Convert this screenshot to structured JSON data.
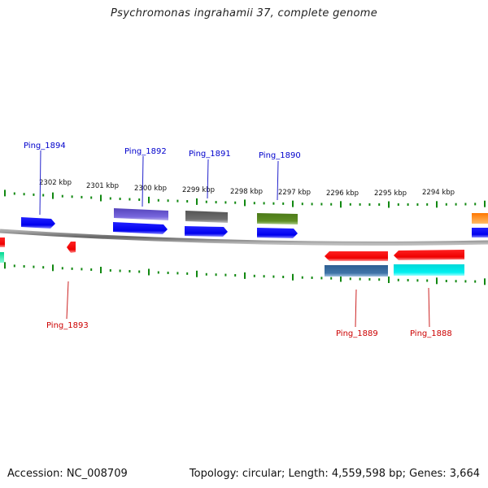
{
  "title": "Psychromonas ingrahamii 37, complete genome",
  "footer": {
    "accession": "Accession: NC_008709",
    "summary": "Topology: circular; Length: 4,559,598 bp; Genes: 3,664"
  },
  "scale_labels": [
    "2302 kbp",
    "2301 kbp",
    "2300 kbp",
    "2299 kbp",
    "2298 kbp",
    "2297 kbp",
    "2296 kbp",
    "2295 kbp",
    "2294 kbp"
  ],
  "genes_top": [
    {
      "name": "Ping_1894",
      "color": "#0000cc"
    },
    {
      "name": "Ping_1892",
      "color": "#0000cc"
    },
    {
      "name": "Ping_1891",
      "color": "#0000cc"
    },
    {
      "name": "Ping_1890",
      "color": "#0000cc"
    }
  ],
  "genes_bottom": [
    {
      "name": "Ping_1893",
      "color": "#cc0000"
    },
    {
      "name": "Ping_1889",
      "color": "#cc0000"
    },
    {
      "name": "Ping_1888",
      "color": "#cc0000"
    }
  ],
  "colors": {
    "forward_strand": "#0000ff",
    "reverse_strand": "#ff0000",
    "backbone": "#777777",
    "ticks": "#118811",
    "cog_purple": "#6655cc",
    "cog_gray": "#666666",
    "cog_olive": "#5a8a22",
    "cog_steel": "#3a6ea0",
    "cog_cyan": "#00e5e5",
    "cog_orange": "#ff8800",
    "cog_teal": "#00e0a0"
  }
}
